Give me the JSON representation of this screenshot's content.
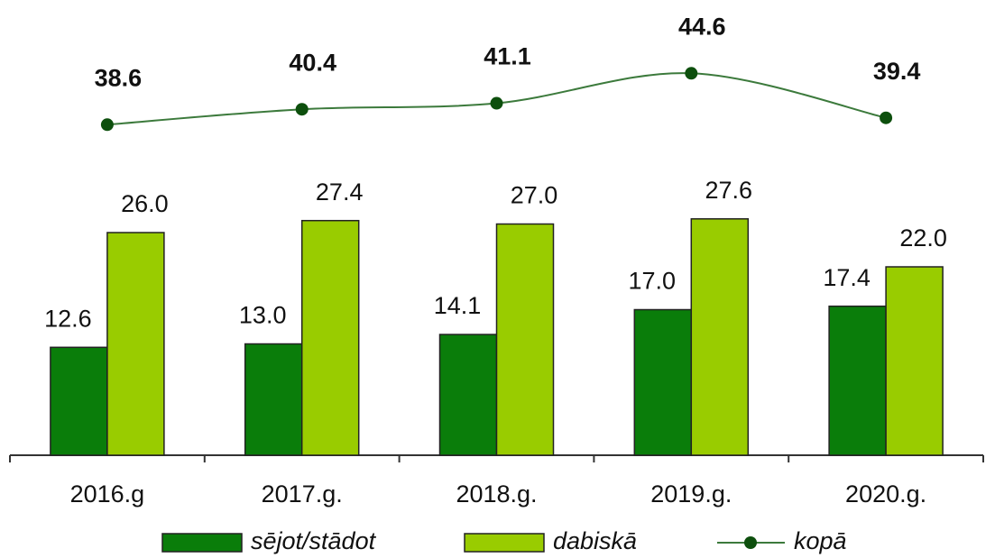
{
  "chart_data": {
    "type": "bar",
    "categories": [
      "2016.g",
      "2017.g.",
      "2018.g.",
      "2019.g.",
      "2020.g."
    ],
    "ylim": [
      0,
      50
    ],
    "series": [
      {
        "name": "sējot/stādot",
        "type": "bar",
        "color": "#0a7d0a",
        "values": [
          12.6,
          13.0,
          14.1,
          17.0,
          17.4
        ],
        "value_labels": [
          "12.6",
          "13.0",
          "14.1",
          "17.0",
          "17.4"
        ]
      },
      {
        "name": "dabiskā",
        "type": "bar",
        "color": "#99cc00",
        "values": [
          26.0,
          27.4,
          27.0,
          27.6,
          22.0
        ],
        "value_labels": [
          "26.0",
          "27.4",
          "27.0",
          "27.6",
          "22.0"
        ]
      },
      {
        "name": "kopā",
        "type": "line",
        "color": "#3c7a3c",
        "marker_color": "#0d4f0d",
        "values": [
          38.6,
          40.4,
          41.1,
          44.6,
          39.4
        ],
        "value_labels": [
          "38.6",
          "40.4",
          "41.1",
          "44.6",
          "39.4"
        ]
      }
    ]
  }
}
